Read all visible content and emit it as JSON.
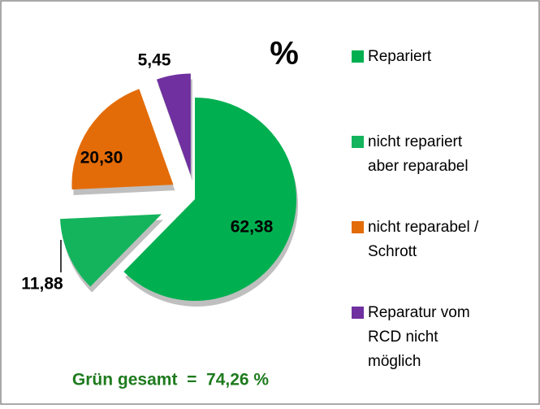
{
  "chart_data": {
    "type": "pie",
    "title": "%",
    "categories": [
      "Repariert",
      "nicht repariert\naber reparabel",
      "nicht reparabel /\nSchrott",
      "Reparatur vom\nRCD nicht\nmöglich"
    ],
    "values": [
      62.38,
      11.88,
      20.3,
      5.45
    ],
    "value_labels": [
      "62,38",
      "11,88",
      "20,30",
      "5,45"
    ],
    "colors": [
      "#00b050",
      "#14b45c",
      "#e36c09",
      "#7030a0"
    ],
    "annotation": "Grün gesamt  =  74,26 %",
    "legend": "right"
  }
}
